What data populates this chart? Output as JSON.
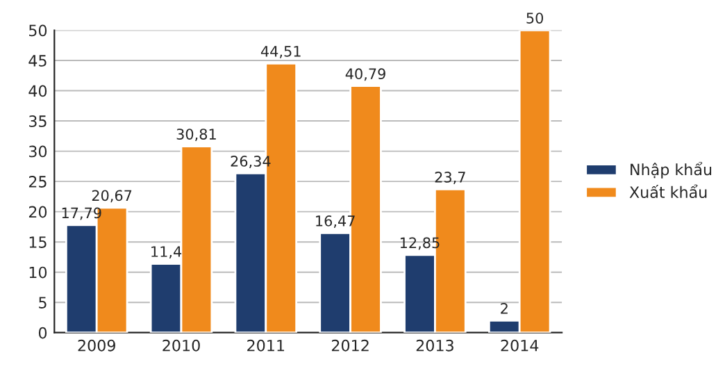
{
  "chart_data": {
    "type": "bar",
    "categories": [
      "2009",
      "2010",
      "2011",
      "2012",
      "2013",
      "2014"
    ],
    "series": [
      {
        "name": "Nhập khẩu",
        "color": "#1f3d6e",
        "values": [
          17.79,
          11.4,
          26.34,
          16.47,
          12.85,
          2
        ],
        "value_labels": [
          "17,79",
          "11,4",
          "26,34",
          "16,47",
          "12,85",
          "2"
        ]
      },
      {
        "name": "Xuất khẩu",
        "color": "#f08a1c",
        "values": [
          20.67,
          30.81,
          44.51,
          40.79,
          23.7,
          50
        ],
        "value_labels": [
          "20,67",
          "30,81",
          "44,51",
          "40,79",
          "23,7",
          "50"
        ]
      }
    ],
    "ylim": [
      0,
      50
    ],
    "yticks": [
      0,
      5,
      10,
      15,
      20,
      25,
      30,
      35,
      40,
      45,
      50
    ],
    "grid": "y",
    "legend": "right"
  }
}
